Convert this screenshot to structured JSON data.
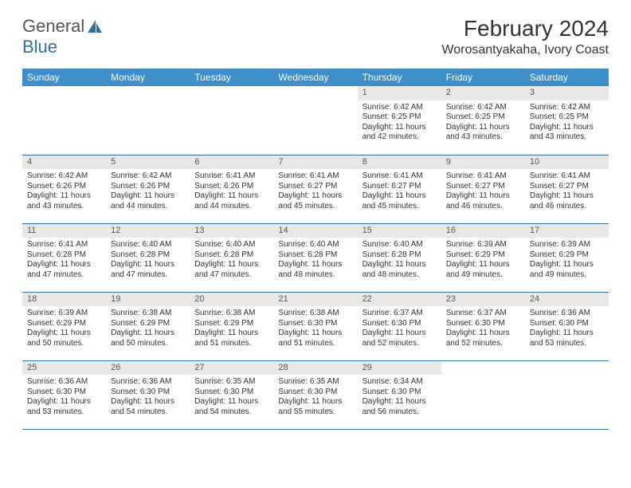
{
  "logo": {
    "word1": "General",
    "word2": "Blue"
  },
  "title": "February 2024",
  "location": "Worosantyakaha, Ivory Coast",
  "colors": {
    "header_bg": "#3d8ec9",
    "header_text": "#ffffff",
    "daynum_bg": "#e8e8e8",
    "row_border": "#2f6fa8",
    "logo_blue": "#2f6fa8",
    "text": "#333333",
    "background": "#ffffff"
  },
  "fonts": {
    "title_size_pt": 21,
    "location_size_pt": 12,
    "header_size_pt": 9,
    "body_size_pt": 7.5,
    "daynum_size_pt": 8
  },
  "weekdays": [
    "Sunday",
    "Monday",
    "Tuesday",
    "Wednesday",
    "Thursday",
    "Friday",
    "Saturday"
  ],
  "weeks": [
    [
      null,
      null,
      null,
      null,
      {
        "n": "1",
        "sr": "6:42 AM",
        "ss": "6:25 PM",
        "dl": "11 hours and 42 minutes."
      },
      {
        "n": "2",
        "sr": "6:42 AM",
        "ss": "6:25 PM",
        "dl": "11 hours and 43 minutes."
      },
      {
        "n": "3",
        "sr": "6:42 AM",
        "ss": "6:25 PM",
        "dl": "11 hours and 43 minutes."
      }
    ],
    [
      {
        "n": "4",
        "sr": "6:42 AM",
        "ss": "6:26 PM",
        "dl": "11 hours and 43 minutes."
      },
      {
        "n": "5",
        "sr": "6:42 AM",
        "ss": "6:26 PM",
        "dl": "11 hours and 44 minutes."
      },
      {
        "n": "6",
        "sr": "6:41 AM",
        "ss": "6:26 PM",
        "dl": "11 hours and 44 minutes."
      },
      {
        "n": "7",
        "sr": "6:41 AM",
        "ss": "6:27 PM",
        "dl": "11 hours and 45 minutes."
      },
      {
        "n": "8",
        "sr": "6:41 AM",
        "ss": "6:27 PM",
        "dl": "11 hours and 45 minutes."
      },
      {
        "n": "9",
        "sr": "6:41 AM",
        "ss": "6:27 PM",
        "dl": "11 hours and 46 minutes."
      },
      {
        "n": "10",
        "sr": "6:41 AM",
        "ss": "6:27 PM",
        "dl": "11 hours and 46 minutes."
      }
    ],
    [
      {
        "n": "11",
        "sr": "6:41 AM",
        "ss": "6:28 PM",
        "dl": "11 hours and 47 minutes."
      },
      {
        "n": "12",
        "sr": "6:40 AM",
        "ss": "6:28 PM",
        "dl": "11 hours and 47 minutes."
      },
      {
        "n": "13",
        "sr": "6:40 AM",
        "ss": "6:28 PM",
        "dl": "11 hours and 47 minutes."
      },
      {
        "n": "14",
        "sr": "6:40 AM",
        "ss": "6:28 PM",
        "dl": "11 hours and 48 minutes."
      },
      {
        "n": "15",
        "sr": "6:40 AM",
        "ss": "6:28 PM",
        "dl": "11 hours and 48 minutes."
      },
      {
        "n": "16",
        "sr": "6:39 AM",
        "ss": "6:29 PM",
        "dl": "11 hours and 49 minutes."
      },
      {
        "n": "17",
        "sr": "6:39 AM",
        "ss": "6:29 PM",
        "dl": "11 hours and 49 minutes."
      }
    ],
    [
      {
        "n": "18",
        "sr": "6:39 AM",
        "ss": "6:29 PM",
        "dl": "11 hours and 50 minutes."
      },
      {
        "n": "19",
        "sr": "6:38 AM",
        "ss": "6:29 PM",
        "dl": "11 hours and 50 minutes."
      },
      {
        "n": "20",
        "sr": "6:38 AM",
        "ss": "6:29 PM",
        "dl": "11 hours and 51 minutes."
      },
      {
        "n": "21",
        "sr": "6:38 AM",
        "ss": "6:30 PM",
        "dl": "11 hours and 51 minutes."
      },
      {
        "n": "22",
        "sr": "6:37 AM",
        "ss": "6:30 PM",
        "dl": "11 hours and 52 minutes."
      },
      {
        "n": "23",
        "sr": "6:37 AM",
        "ss": "6:30 PM",
        "dl": "11 hours and 52 minutes."
      },
      {
        "n": "24",
        "sr": "6:36 AM",
        "ss": "6:30 PM",
        "dl": "11 hours and 53 minutes."
      }
    ],
    [
      {
        "n": "25",
        "sr": "6:36 AM",
        "ss": "6:30 PM",
        "dl": "11 hours and 53 minutes."
      },
      {
        "n": "26",
        "sr": "6:36 AM",
        "ss": "6:30 PM",
        "dl": "11 hours and 54 minutes."
      },
      {
        "n": "27",
        "sr": "6:35 AM",
        "ss": "6:30 PM",
        "dl": "11 hours and 54 minutes."
      },
      {
        "n": "28",
        "sr": "6:35 AM",
        "ss": "6:30 PM",
        "dl": "11 hours and 55 minutes."
      },
      {
        "n": "29",
        "sr": "6:34 AM",
        "ss": "6:30 PM",
        "dl": "11 hours and 56 minutes."
      },
      null,
      null
    ]
  ],
  "labels": {
    "sunrise": "Sunrise:",
    "sunset": "Sunset:",
    "daylight": "Daylight:"
  }
}
